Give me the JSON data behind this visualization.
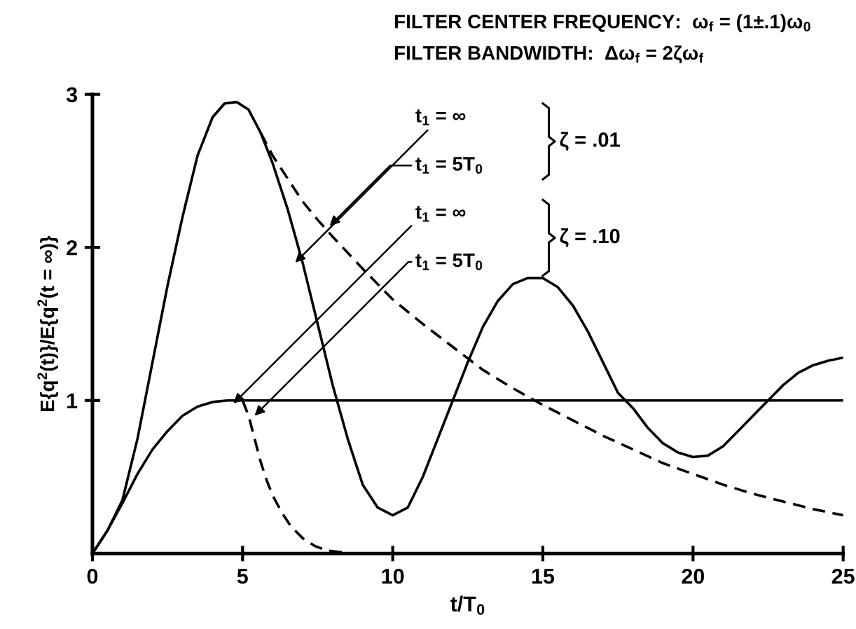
{
  "chart_data": {
    "type": "line",
    "title": "FILTER CENTER FREQUENCY:  ω$_{f}$ = (1±.1)ω$_{0}$",
    "subtitle": "FILTER BANDWIDTH:  Δω$_{f}$ = 2ζω$_{f}$",
    "xlabel": "t/T$_{0}$",
    "ylabel": "E{q$^{2}$(t)}/E{q$^{2}$(t = ∞)}",
    "xlim": [
      0,
      25
    ],
    "ylim": [
      0,
      3
    ],
    "xticks": [
      0,
      5,
      10,
      15,
      20,
      25
    ],
    "yticks": [
      1,
      2,
      3
    ],
    "grid": false,
    "legend": false,
    "marker": "none",
    "series": [
      {
        "color": "#000000",
        "line_style": "solid",
        "x": [
          0,
          0.5,
          1,
          1.5,
          2,
          2.5,
          3,
          3.5,
          4,
          4.4,
          4.8,
          5.2,
          5.6,
          6,
          6.5,
          7,
          7.5,
          8,
          8.5,
          9,
          9.5,
          10,
          10.5,
          11,
          11.5,
          12,
          12.5,
          13,
          13.5,
          14,
          14.5,
          15,
          15.5,
          16,
          16.5,
          17,
          17.5,
          18,
          18.5,
          19,
          19.5,
          20,
          20.5,
          21,
          21.5,
          22,
          22.5,
          23,
          23.5,
          24,
          24.5,
          25
        ],
        "values": [
          0,
          0.15,
          0.35,
          0.75,
          1.25,
          1.75,
          2.2,
          2.6,
          2.85,
          2.94,
          2.95,
          2.9,
          2.75,
          2.55,
          2.25,
          1.9,
          1.5,
          1.1,
          0.75,
          0.45,
          0.3,
          0.25,
          0.3,
          0.5,
          0.75,
          1.0,
          1.25,
          1.48,
          1.65,
          1.76,
          1.8,
          1.8,
          1.74,
          1.62,
          1.45,
          1.25,
          1.05,
          0.95,
          0.82,
          0.72,
          0.66,
          0.63,
          0.64,
          0.7,
          0.8,
          0.9,
          1.0,
          1.1,
          1.18,
          1.23,
          1.26,
          1.28
        ]
      },
      {
        "color": "#000000",
        "line_style": "dashed",
        "x": [
          5.6,
          6,
          6.5,
          7,
          7.5,
          8,
          9,
          10,
          11,
          12,
          13,
          14,
          15,
          16,
          17,
          18,
          19,
          20,
          21,
          22,
          23,
          24,
          25
        ],
        "values": [
          2.75,
          2.6,
          2.45,
          2.3,
          2.18,
          2.07,
          1.86,
          1.66,
          1.5,
          1.35,
          1.2,
          1.08,
          0.97,
          0.87,
          0.77,
          0.68,
          0.59,
          0.52,
          0.45,
          0.39,
          0.34,
          0.29,
          0.25
        ]
      },
      {
        "color": "#000000",
        "line_style": "solid",
        "x": [
          0,
          0.5,
          1,
          1.5,
          2,
          2.5,
          3,
          3.5,
          4,
          4.5,
          5,
          10,
          15,
          20,
          25
        ],
        "values": [
          0,
          0.15,
          0.33,
          0.52,
          0.68,
          0.8,
          0.9,
          0.96,
          0.99,
          1.0,
          1.0,
          1.0,
          1.0,
          1.0,
          1.0
        ]
      },
      {
        "color": "#000000",
        "line_style": "dashed",
        "x": [
          5,
          5.2,
          5.4,
          5.6,
          5.8,
          6,
          6.3,
          6.6,
          7,
          7.4,
          7.8,
          8.2,
          8.6
        ],
        "values": [
          1.0,
          0.9,
          0.75,
          0.6,
          0.48,
          0.38,
          0.27,
          0.18,
          0.1,
          0.05,
          0.02,
          0.01,
          0
        ]
      }
    ],
    "annotations": [
      {
        "text": "t$_{1}$ = ∞",
        "x": 6.75,
        "y": 1.9
      },
      {
        "text": "t$_{1}$ = 5T$_{0}$",
        "x": 7.9,
        "y": 2.14
      },
      {
        "text": "t$_{1}$ = ∞",
        "x": 4.7,
        "y": 0.98
      },
      {
        "text": "t$_{1}$ = 5T$_{0}$",
        "x": 5.4,
        "y": 0.9
      },
      "ζ = .01",
      "ζ = .10"
    ]
  }
}
